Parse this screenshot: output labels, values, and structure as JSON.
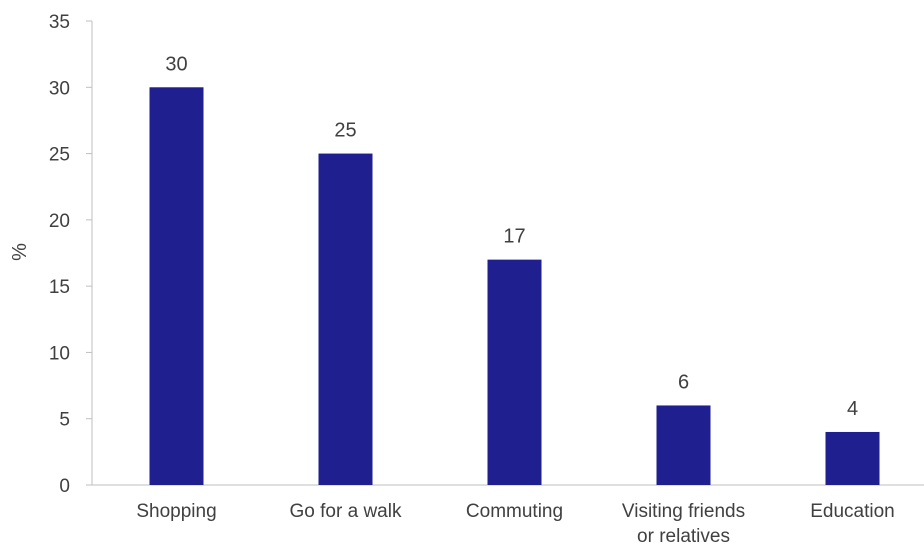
{
  "chart_data": {
    "type": "bar",
    "categories": [
      "Shopping",
      "Go for a walk",
      "Commuting",
      "Visiting friends or relatives",
      "Education"
    ],
    "category_lines": [
      [
        "Shopping"
      ],
      [
        "Go for a walk"
      ],
      [
        "Commuting"
      ],
      [
        "Visiting friends",
        "or relatives"
      ],
      [
        "Education"
      ]
    ],
    "values": [
      30,
      25,
      17,
      6,
      4
    ],
    "data_labels": [
      "30",
      "25",
      "17",
      "6",
      "4"
    ],
    "ylabel": "%",
    "ylim": [
      0,
      35
    ],
    "yticks": [
      0,
      5,
      10,
      15,
      20,
      25,
      30,
      35
    ],
    "grid": false,
    "colors": {
      "bar": "#1f1f8f",
      "axis": "#bfbfbf",
      "text": "#404040"
    }
  }
}
